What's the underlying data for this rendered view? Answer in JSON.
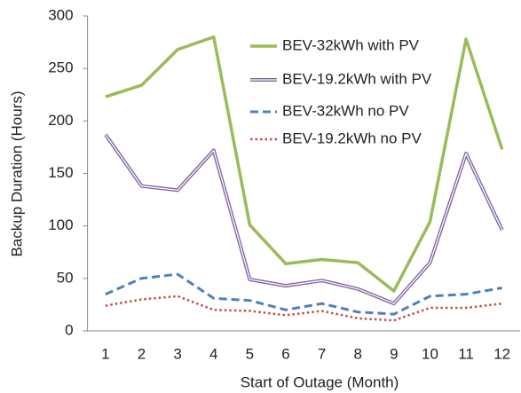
{
  "chart_data": {
    "type": "line",
    "x_label": "Start of Outage (Month)",
    "y_label": "Backup Duration (Hours)",
    "categories": [
      "1",
      "2",
      "3",
      "4",
      "5",
      "6",
      "7",
      "8",
      "9",
      "10",
      "11",
      "12"
    ],
    "ylim": [
      0,
      300
    ],
    "yticks": [
      0,
      50,
      100,
      150,
      200,
      250,
      300
    ],
    "grid": false,
    "legend": "upper right",
    "series": [
      {
        "name": "BEV-32kWh with PV",
        "color": "#9bbb59",
        "style": "solid",
        "values": [
          223,
          234,
          268,
          280,
          101,
          64,
          68,
          65,
          38,
          104,
          278,
          173
        ]
      },
      {
        "name": "BEV-19.2kWh with PV",
        "color": "#8064a2",
        "style": "double",
        "values": [
          187,
          138,
          134,
          172,
          49,
          43,
          48,
          40,
          26,
          65,
          169,
          96
        ]
      },
      {
        "name": "BEV-32kWh no PV",
        "color": "#4f81bd",
        "style": "dashed",
        "values": [
          35,
          50,
          54,
          31,
          29,
          20,
          26,
          18,
          16,
          33,
          35,
          41
        ]
      },
      {
        "name": "BEV-19.2kWh no PV",
        "color": "#c0504d",
        "style": "dotted",
        "values": [
          24,
          30,
          33,
          20,
          19,
          15,
          19,
          12,
          10,
          22,
          22,
          26
        ]
      }
    ]
  }
}
